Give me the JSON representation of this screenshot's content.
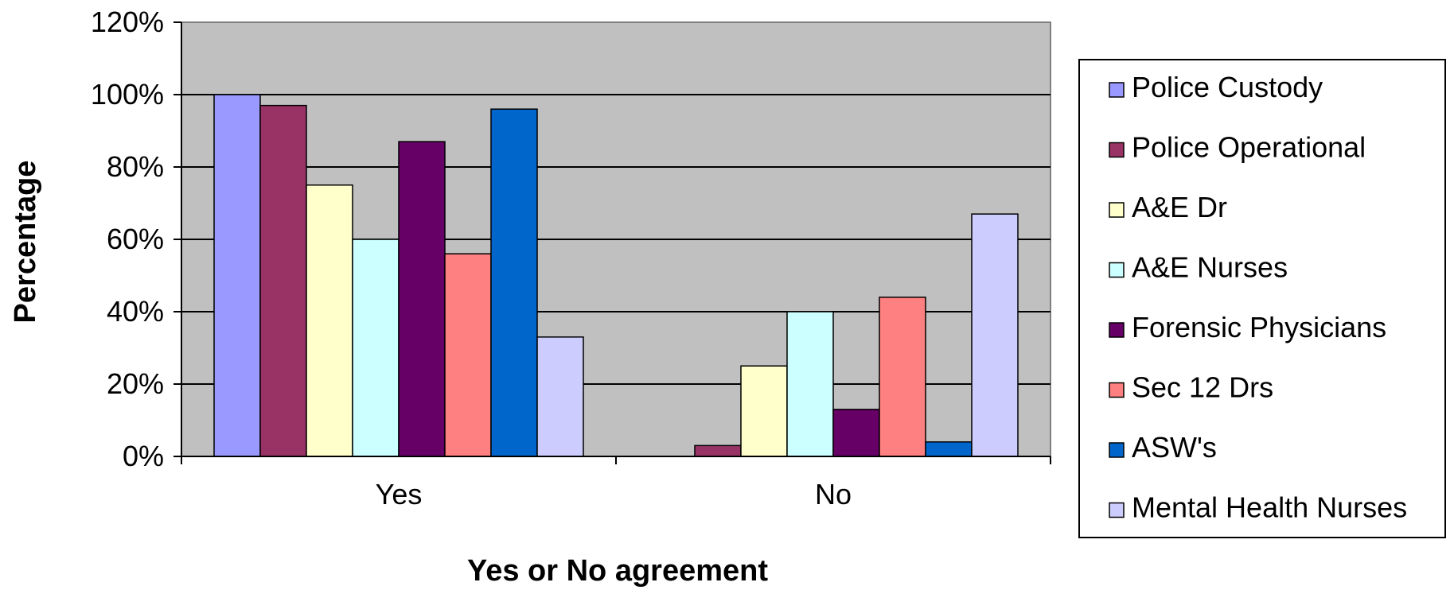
{
  "chart_data": {
    "type": "bar",
    "title": "",
    "xlabel": "Yes or No agreement",
    "ylabel": "Percentage",
    "ylim": [
      0,
      120
    ],
    "yticks": [
      "0%",
      "20%",
      "40%",
      "60%",
      "80%",
      "100%",
      "120%"
    ],
    "grid": true,
    "legend_position": "right",
    "categories": [
      "Yes",
      "No"
    ],
    "series": [
      {
        "name": "Police Custody",
        "color": "#9999ff",
        "values": [
          100,
          0
        ]
      },
      {
        "name": "Police Operational",
        "color": "#993366",
        "values": [
          97,
          3
        ]
      },
      {
        "name": "A&E Dr",
        "color": "#ffffcc",
        "values": [
          75,
          25
        ]
      },
      {
        "name": "A&E Nurses",
        "color": "#ccffff",
        "values": [
          60,
          40
        ]
      },
      {
        "name": "Forensic Physicians",
        "color": "#660066",
        "values": [
          87,
          13
        ]
      },
      {
        "name": "Sec 12 Drs",
        "color": "#ff8080",
        "values": [
          56,
          44
        ]
      },
      {
        "name": "ASW's",
        "color": "#0066cc",
        "values": [
          96,
          4
        ]
      },
      {
        "name": "Mental Health Nurses",
        "color": "#ccccff",
        "values": [
          33,
          67
        ]
      }
    ],
    "colors": {
      "plot_background": "#c0c0c0",
      "gridline": "#000000"
    }
  }
}
